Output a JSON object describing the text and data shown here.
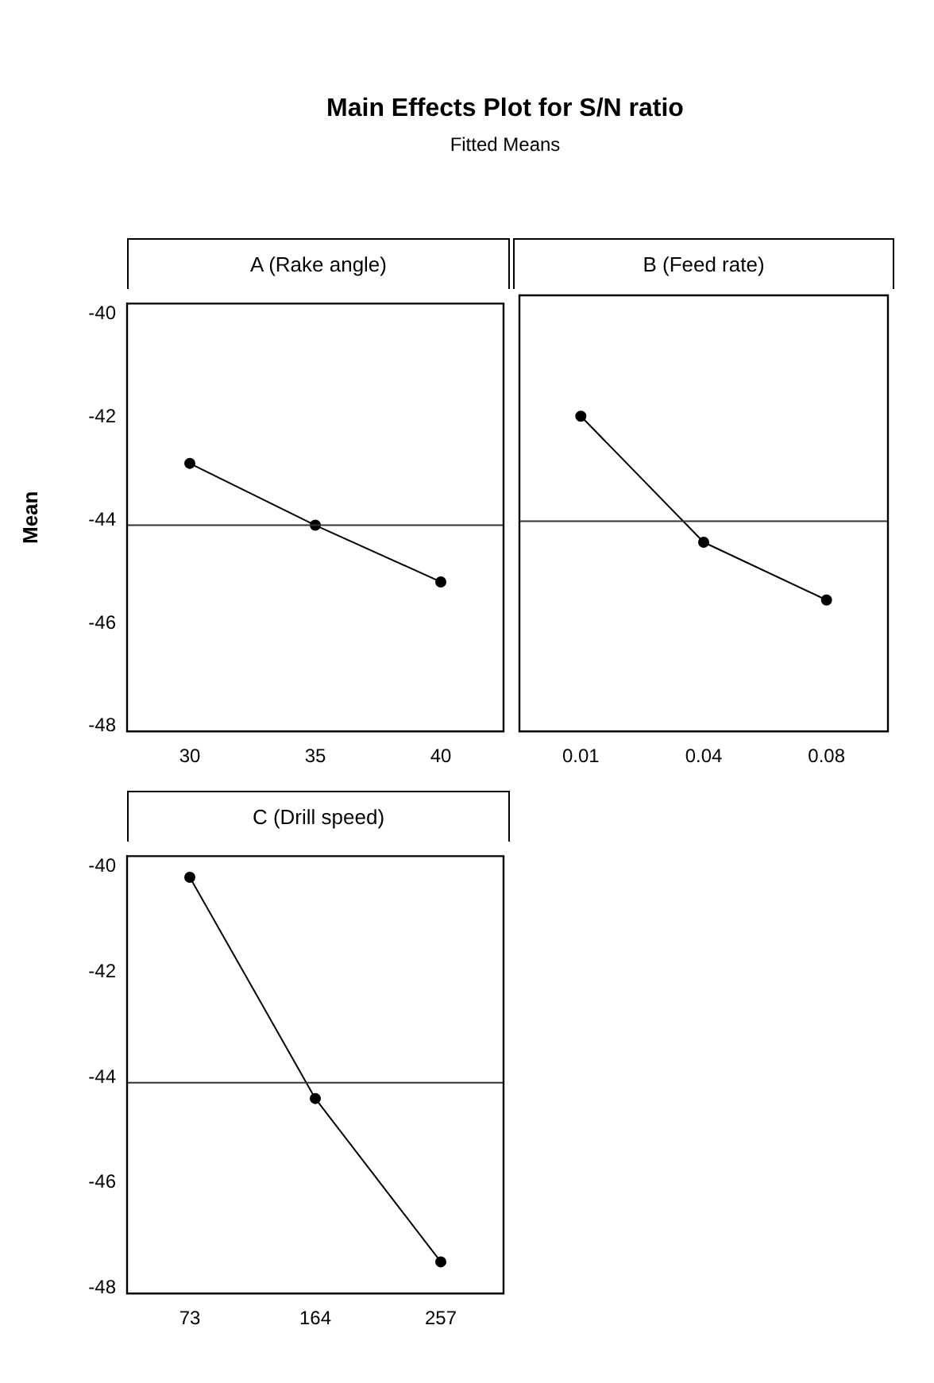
{
  "chart_data": [
    {
      "type": "other",
      "title": "Main Effects Plot for S/N ratio",
      "subtitle": "Fitted Means"
    },
    {
      "type": "line",
      "title": "A (Rake angle)",
      "ylabel": "Mean",
      "categories": [
        "30",
        "35",
        "40"
      ],
      "values": [
        -42.9,
        -44.1,
        -45.2
      ],
      "color": "#000000",
      "ylim": [
        -48.1,
        -39.8
      ],
      "yticks": [
        -40,
        -42,
        -44,
        -46,
        -48
      ],
      "ref_lines": [
        {
          "axis": "y",
          "value": -44.1
        }
      ],
      "marker": "circle"
    },
    {
      "type": "line",
      "title": "B (Feed rate)",
      "categories": [
        "0.01",
        "0.04",
        "0.08"
      ],
      "values": [
        -42.1,
        -44.5,
        -45.6
      ],
      "color": "#000000",
      "ylim": [
        -48.1,
        -39.8
      ],
      "yticks": [
        -40,
        -42,
        -44,
        -46,
        -48
      ],
      "ref_lines": [
        {
          "axis": "y",
          "value": -44.1
        }
      ],
      "marker": "circle",
      "tick_labels": "x"
    },
    {
      "type": "line",
      "title": "C (Drill speed)",
      "categories": [
        "73",
        "164",
        "257"
      ],
      "values": [
        -40.2,
        -44.4,
        -47.5
      ],
      "color": "#000000",
      "ylim": [
        -48.1,
        -39.8
      ],
      "yticks": [
        -40,
        -42,
        -44,
        -46,
        -48
      ],
      "ref_lines": [
        {
          "axis": "y",
          "value": -44.1
        }
      ],
      "marker": "circle"
    }
  ]
}
